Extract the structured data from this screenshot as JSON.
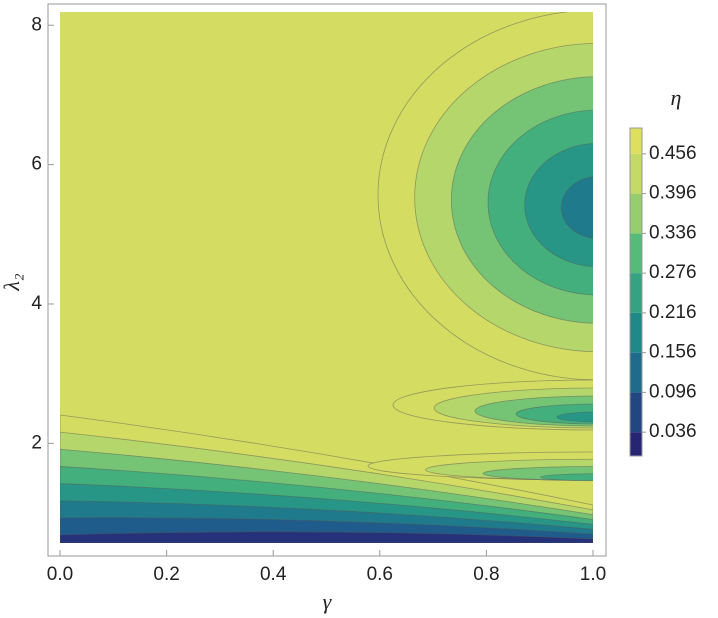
{
  "chart_data": {
    "type": "contour",
    "xlabel": "γ",
    "ylabel": "λ₂",
    "xlim": [
      0,
      1
    ],
    "xticks": [
      {
        "value": 0,
        "label": "0.0"
      },
      0.2,
      0.4,
      0.6,
      0.8,
      {
        "value": 1,
        "label": "1.0"
      }
    ],
    "ylim": [
      0.57,
      8.19
    ],
    "yticks": [
      2,
      4,
      6,
      8
    ],
    "colorbar": {
      "title": "η",
      "lim": [
        0,
        0.495
      ],
      "ticks": [
        0.036,
        0.096,
        0.156,
        0.216,
        0.276,
        0.336,
        0.396,
        0.456
      ],
      "colors": [
        "#28186e",
        "#1f5d8c",
        "#1f8f8a",
        "#4cb77a",
        "#b5d66a",
        "#e8e05c"
      ]
    }
  }
}
